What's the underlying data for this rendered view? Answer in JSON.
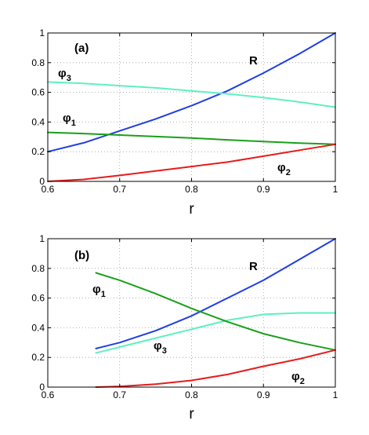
{
  "chart_data": [
    {
      "type": "line",
      "panel_label": "(a)",
      "xlabel": "r",
      "ylabel": "",
      "xlim": [
        0.6,
        1.0
      ],
      "ylim": [
        0,
        1
      ],
      "x_ticks": [
        "0.6",
        "0.7",
        "0.8",
        "0.9",
        "1"
      ],
      "y_ticks": [
        "0",
        "0.2",
        "0.4",
        "0.6",
        "0.8",
        "1"
      ],
      "grid": true,
      "series": [
        {
          "name": "R",
          "label_main": "R",
          "label_sub": "",
          "color": "#1f3fe0",
          "x": [
            0.6,
            0.65,
            0.7,
            0.75,
            0.8,
            0.85,
            0.9,
            0.95,
            1.0
          ],
          "y": [
            0.2,
            0.26,
            0.34,
            0.42,
            0.51,
            0.61,
            0.73,
            0.86,
            1.0
          ]
        },
        {
          "name": "φ3",
          "label_main": "φ",
          "label_sub": "3",
          "color": "#5ef0c0",
          "x": [
            0.6,
            0.65,
            0.7,
            0.75,
            0.8,
            0.85,
            0.9,
            0.95,
            1.0
          ],
          "y": [
            0.67,
            0.66,
            0.645,
            0.63,
            0.61,
            0.59,
            0.565,
            0.535,
            0.5
          ]
        },
        {
          "name": "φ1",
          "label_main": "φ",
          "label_sub": "1",
          "color": "#1aa01a",
          "x": [
            0.6,
            0.65,
            0.7,
            0.75,
            0.8,
            0.85,
            0.9,
            0.95,
            1.0
          ],
          "y": [
            0.33,
            0.322,
            0.312,
            0.302,
            0.292,
            0.28,
            0.268,
            0.258,
            0.25
          ]
        },
        {
          "name": "φ2",
          "label_main": "φ",
          "label_sub": "2",
          "color": "#e81b1b",
          "x": [
            0.6,
            0.65,
            0.7,
            0.75,
            0.8,
            0.85,
            0.9,
            0.95,
            1.0
          ],
          "y": [
            0.0,
            0.013,
            0.04,
            0.07,
            0.1,
            0.13,
            0.17,
            0.21,
            0.25
          ]
        }
      ]
    },
    {
      "type": "line",
      "panel_label": "(b)",
      "xlabel": "r",
      "ylabel": "",
      "xlim": [
        0.6,
        1.0
      ],
      "ylim": [
        0,
        1
      ],
      "x_ticks": [
        "0.6",
        "0.7",
        "0.8",
        "0.9",
        "1"
      ],
      "y_ticks": [
        "0",
        "0.2",
        "0.4",
        "0.6",
        "0.8",
        "1"
      ],
      "grid": true,
      "series": [
        {
          "name": "R",
          "label_main": "R",
          "label_sub": "",
          "color": "#1f3fe0",
          "x": [
            0.667,
            0.7,
            0.75,
            0.8,
            0.85,
            0.9,
            0.95,
            1.0
          ],
          "y": [
            0.26,
            0.3,
            0.38,
            0.48,
            0.6,
            0.72,
            0.86,
            1.0
          ]
        },
        {
          "name": "φ3",
          "label_main": "φ",
          "label_sub": "3",
          "color": "#5ef0c0",
          "x": [
            0.667,
            0.7,
            0.75,
            0.8,
            0.85,
            0.9,
            0.95,
            1.0
          ],
          "y": [
            0.23,
            0.27,
            0.33,
            0.39,
            0.45,
            0.49,
            0.5,
            0.5
          ]
        },
        {
          "name": "φ1",
          "label_main": "φ",
          "label_sub": "1",
          "color": "#1aa01a",
          "x": [
            0.667,
            0.7,
            0.75,
            0.8,
            0.85,
            0.9,
            0.95,
            1.0
          ],
          "y": [
            0.77,
            0.72,
            0.63,
            0.53,
            0.44,
            0.36,
            0.3,
            0.25
          ]
        },
        {
          "name": "φ2",
          "label_main": "φ",
          "label_sub": "2",
          "color": "#e81b1b",
          "x": [
            0.667,
            0.7,
            0.75,
            0.8,
            0.85,
            0.9,
            0.95,
            1.0
          ],
          "y": [
            0.0,
            0.005,
            0.02,
            0.045,
            0.085,
            0.14,
            0.19,
            0.25
          ]
        }
      ]
    }
  ]
}
